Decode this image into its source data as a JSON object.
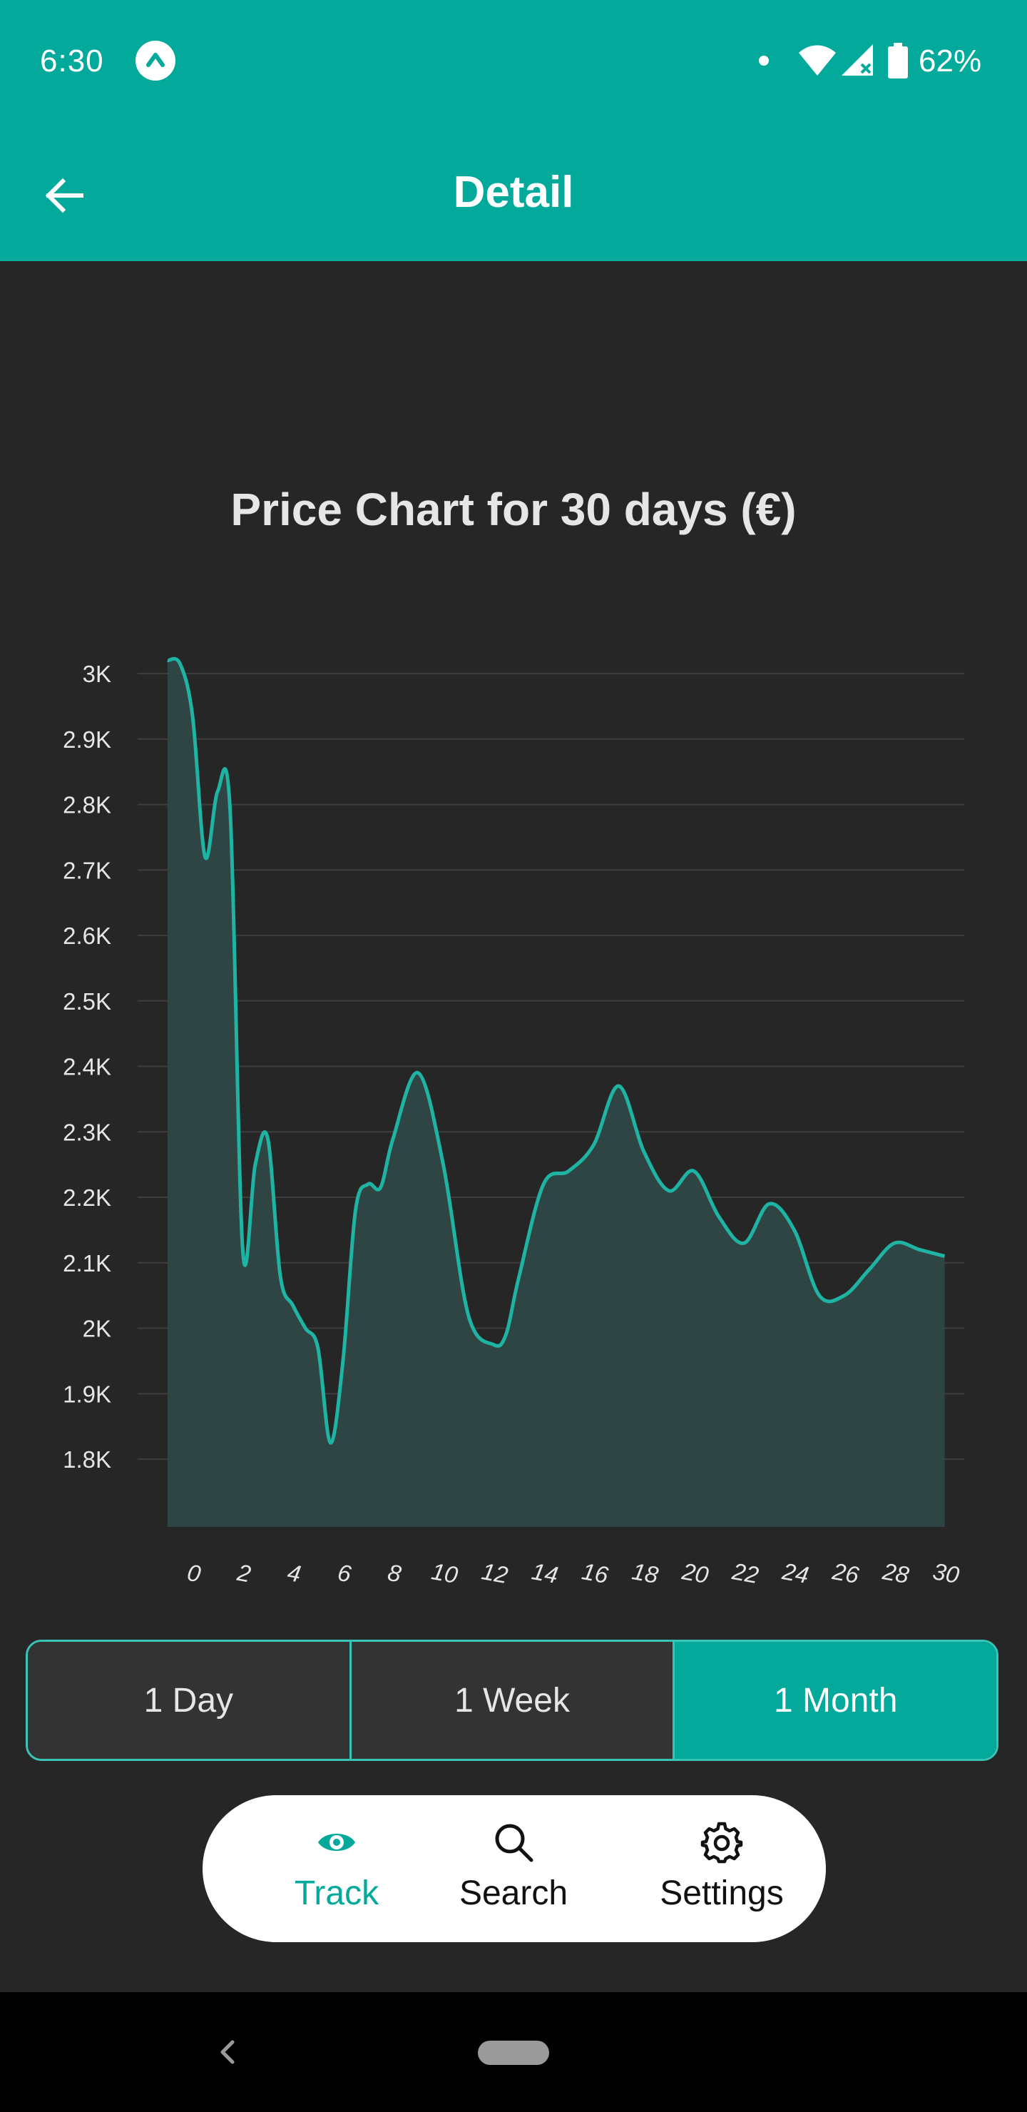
{
  "status_bar": {
    "time": "6:30",
    "battery_text": "62%",
    "icons": [
      "app-notification-icon",
      "dot-icon",
      "wifi-icon",
      "cell-signal-icon",
      "battery-icon"
    ]
  },
  "app_bar": {
    "title": "Detail",
    "back_icon": "arrow-left-icon"
  },
  "chart_data": {
    "type": "area",
    "title": "Price Chart for 30 days (€)",
    "xlabel": "",
    "ylabel": "",
    "x_tick_labels": [
      "0",
      "2",
      "4",
      "6",
      "8",
      "10",
      "12",
      "14",
      "16",
      "18",
      "20",
      "22",
      "24",
      "26",
      "28",
      "30"
    ],
    "y_tick_labels": [
      "3K",
      "2.9K",
      "2.8K",
      "2.7K",
      "2.6K",
      "2.5K",
      "2.4K",
      "2.3K",
      "2.2K",
      "2.1K",
      "2K",
      "1.9K",
      "1.8K"
    ],
    "y_ticks": [
      3000,
      2900,
      2800,
      2700,
      2600,
      2500,
      2400,
      2300,
      2200,
      2100,
      2000,
      1900,
      1800
    ],
    "ylim": [
      1700,
      3000
    ],
    "xlim": [
      -1,
      31
    ],
    "grid": true,
    "series": [
      {
        "x": [
          -1,
          -0.5,
          0,
          0.5,
          1,
          1.5,
          2,
          2.5,
          3,
          3.5,
          4,
          4.5,
          5,
          5.5,
          6,
          6.5,
          7,
          7.5,
          8,
          9,
          10,
          11,
          12,
          12.5,
          13,
          14,
          15,
          16,
          17,
          18,
          19,
          20,
          21,
          22,
          23,
          24,
          25,
          26,
          27,
          28,
          29,
          30
        ],
        "values": [
          3020,
          3015,
          2935,
          2720,
          2820,
          2790,
          2120,
          2250,
          2290,
          2080,
          2035,
          2000,
          1970,
          1825,
          1950,
          2180,
          2220,
          2215,
          2290,
          2390,
          2250,
          2020,
          1975,
          1990,
          2075,
          2220,
          2240,
          2280,
          2370,
          2270,
          2210,
          2240,
          2170,
          2130,
          2190,
          2150,
          2050,
          2050,
          2090,
          2130,
          2120,
          2110
        ]
      }
    ],
    "colors": {
      "line": "#1fb3a3",
      "fill": "#2f4745",
      "grid": "#3d3d3d",
      "tick_label": "#e6e6e6"
    }
  },
  "range_selector": {
    "options": [
      {
        "label": "1 Day",
        "active": false
      },
      {
        "label": "1 Week",
        "active": false
      },
      {
        "label": "1 Month",
        "active": true
      }
    ]
  },
  "bottom_nav": {
    "items": [
      {
        "label": "Track",
        "icon": "eye-icon",
        "active": true
      },
      {
        "label": "Search",
        "icon": "search-icon",
        "active": false
      },
      {
        "label": "Settings",
        "icon": "gear-icon",
        "active": false
      }
    ]
  },
  "colors": {
    "accent": "#03a99b",
    "background": "#262626",
    "segment_border": "#3ac4b6"
  }
}
